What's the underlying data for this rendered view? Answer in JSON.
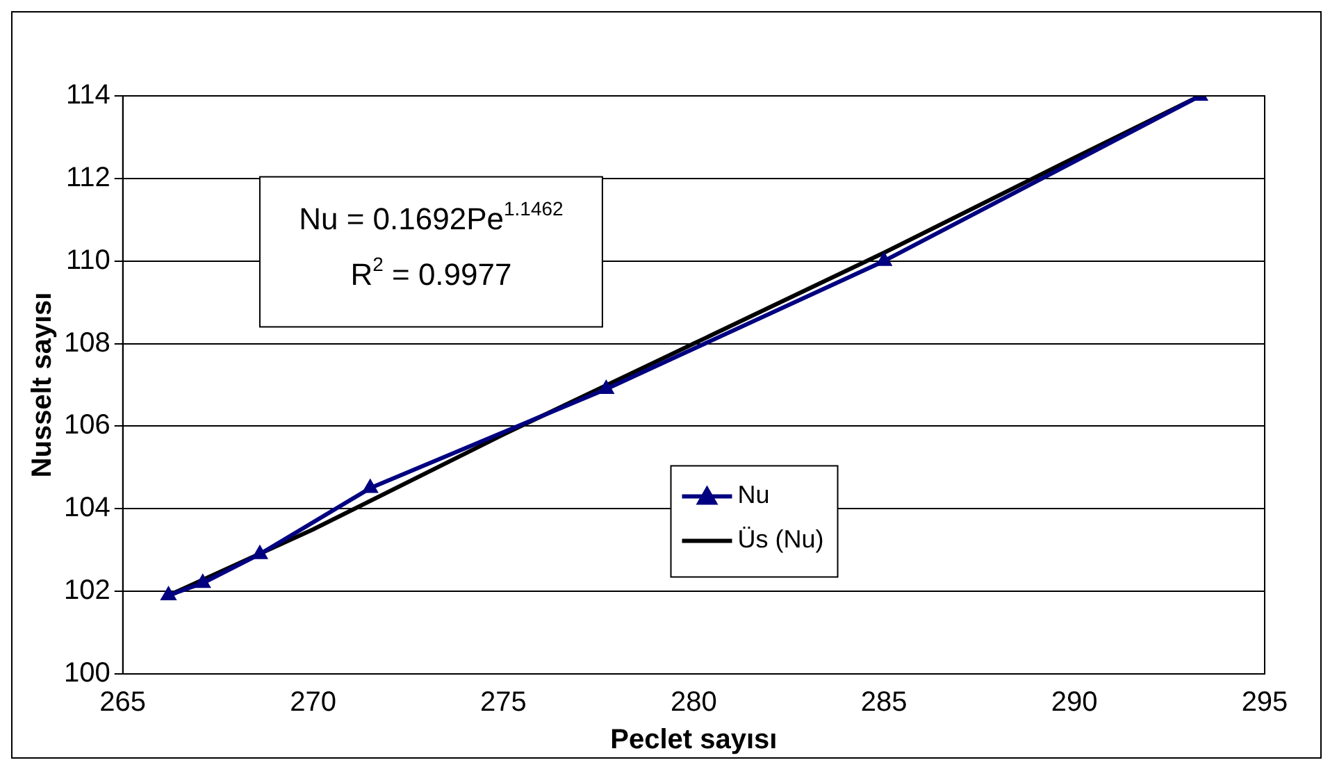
{
  "chart_data": {
    "type": "line",
    "xlabel": "Peclet sayısı",
    "ylabel": "Nusselt sayısı",
    "xlim": [
      265,
      295
    ],
    "xticks": [
      265,
      270,
      275,
      280,
      285,
      290,
      295
    ],
    "ylim": [
      100,
      114
    ],
    "yticks": [
      100,
      102,
      104,
      106,
      108,
      110,
      112,
      114
    ],
    "grid": "y",
    "legend": "center",
    "annotations": [
      "Nu = 0.1692Pe$^{1.1462}$",
      "R$^{2}$ = 0.9977"
    ],
    "series": [
      {
        "name": "Nu",
        "color": "#000080",
        "marker": "triangle",
        "x": [
          266.2,
          267.1,
          268.6,
          271.5,
          277.7,
          285.0,
          293.3
        ],
        "values": [
          101.9,
          102.2,
          102.9,
          104.5,
          106.9,
          110.0,
          114.0
        ]
      },
      {
        "name": "Üs (Nu)",
        "color": "#000000",
        "marker": "none",
        "x": [
          266.2,
          270,
          275,
          280,
          285,
          290,
          293.3
        ],
        "values": [
          101.9,
          103.5,
          105.8,
          108.0,
          110.2,
          112.5,
          114.0
        ]
      }
    ]
  }
}
